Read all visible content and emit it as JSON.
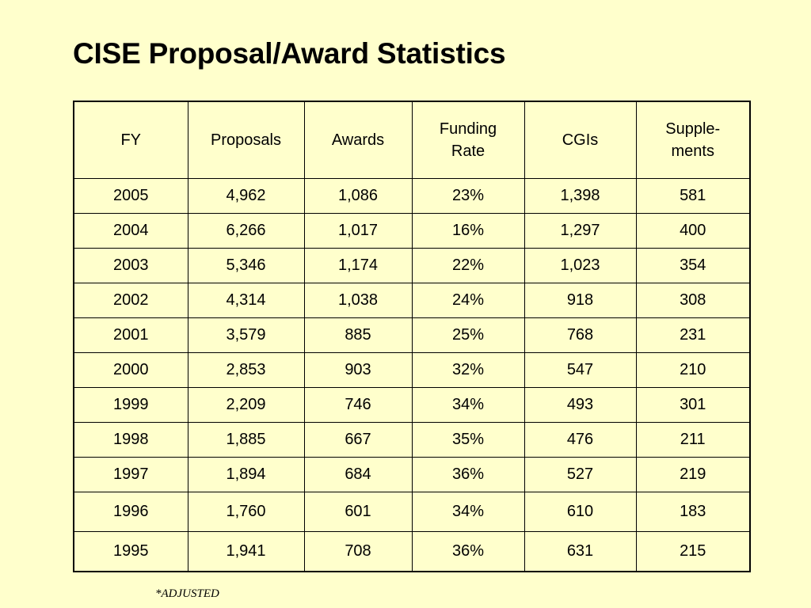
{
  "slide": {
    "title": "CISE Proposal/Award Statistics",
    "footnote": "*ADJUSTED",
    "background_color": "#ffffcc"
  },
  "table": {
    "headers": {
      "fy": "FY",
      "proposals": "Proposals",
      "awards": "Awards",
      "funding_rate": [
        "Funding",
        "Rate"
      ],
      "cgis": "CGIs",
      "supplements": [
        "Supple-",
        "ments"
      ]
    },
    "rows": [
      [
        "2005",
        "4,962",
        "1,086",
        "23%",
        "1,398",
        "581"
      ],
      [
        "2004",
        "6,266",
        "1,017",
        "16%",
        "1,297",
        "400"
      ],
      [
        "2003",
        "5,346",
        "1,174",
        "22%",
        "1,023",
        "354"
      ],
      [
        "2002",
        "4,314",
        "1,038",
        "24%",
        "918",
        "308"
      ],
      [
        "2001",
        "3,579",
        "885",
        "25%",
        "768",
        "231"
      ],
      [
        "2000",
        "2,853",
        "903",
        "32%",
        "547",
        "210"
      ],
      [
        "1999",
        "2,209",
        "746",
        "34%",
        "493",
        "301"
      ],
      [
        "1998",
        "1,885",
        "667",
        "35%",
        "476",
        "211"
      ],
      [
        "1997",
        "1,894",
        "684",
        "36%",
        "527",
        "219"
      ],
      [
        "1996",
        "1,760",
        "601",
        "34%",
        "610",
        "183"
      ],
      [
        "1995",
        "1,941",
        "708",
        "36%",
        "631",
        "215"
      ]
    ]
  }
}
